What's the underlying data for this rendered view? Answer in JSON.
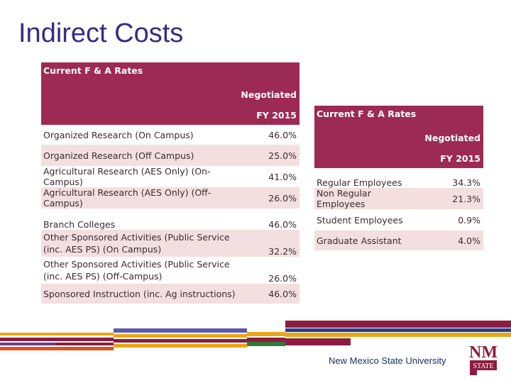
{
  "slide": {
    "title": "Indirect Costs"
  },
  "left_table": {
    "title": "Current F & A Rates",
    "subheader": "Negotiated",
    "year": "FY 2015",
    "rows": [
      {
        "label": "Organized Research (On Campus)",
        "value": "46.0%"
      },
      {
        "label": "Organized Research (Off Campus)",
        "value": "25.0%"
      },
      {
        "label": "Agricultural Research (AES Only) (On-Campus)",
        "value": "41.0%"
      },
      {
        "label": "Agricultural Research (AES Only) (Off-Campus)",
        "value": "26.0%"
      },
      {
        "label": "Branch Colleges",
        "value": "46.0%"
      },
      {
        "label": "Other Sponsored Activities (Public Service (inc. AES PS) (On Campus)",
        "value": "32.2%"
      },
      {
        "label": "Other Sponsored Activities (Public Service (inc. AES PS) (Off-Campus)",
        "value": "26.0%"
      },
      {
        "label": "Sponsored Instruction (inc. Ag instructions)",
        "value": "46.0%"
      }
    ]
  },
  "right_table": {
    "title": "Current F & A Rates",
    "subheader": "Negotiated",
    "year": "FY 2015",
    "rows": [
      {
        "label": "Regular Employees",
        "value": "34.3%"
      },
      {
        "label": "Non Regular Employees",
        "value": "21.3%"
      },
      {
        "label": "Student Employees",
        "value": "0.9%"
      },
      {
        "label": "Graduate Assistant",
        "value": "4.0%"
      }
    ]
  },
  "footer": {
    "university": "New Mexico State University",
    "logo_text_top": "NM",
    "logo_text_bottom": "STATE"
  },
  "colors": {
    "header": "#9c2a52",
    "row_alt": "#f3dfe0",
    "title": "#3a2a82",
    "stripe_gold": "#e8a619",
    "stripe_purple": "#6b3a8c",
    "stripe_crimson": "#8c1d40",
    "stripe_navy": "#2b3a8c",
    "stripe_green": "#2f7a3a",
    "stripe_orange": "#d9541e"
  }
}
